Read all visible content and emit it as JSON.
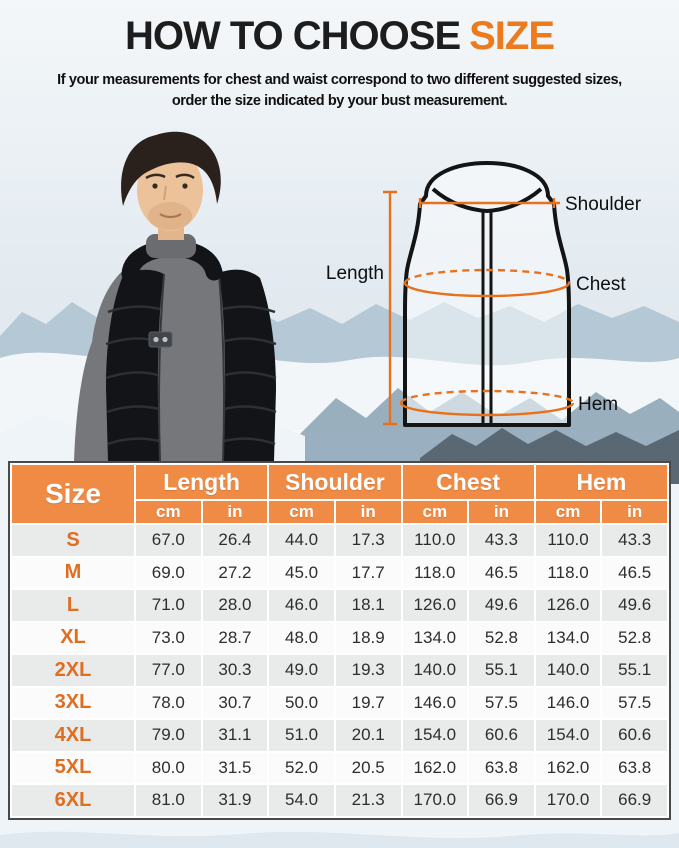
{
  "title": {
    "text": "HOW TO CHOOSE",
    "accent": "SIZE"
  },
  "subtitle": {
    "line1": "If your measurements for chest and waist correspond to two different suggested sizes,",
    "line2": "order the size indicated by your bust measurement."
  },
  "diagram": {
    "labels": {
      "length": "Length",
      "shoulder": "Shoulder",
      "chest": "Chest",
      "hem": "Hem"
    }
  },
  "colors": {
    "accent_orange": "#ED7B1E",
    "header_orange": "#F08B45",
    "size_orange": "#E06E20",
    "measure_orange": "#E8721C",
    "text_dark": "#1d1d1d"
  },
  "chart_data": {
    "type": "table",
    "size_header": "Size",
    "column_groups": [
      "Length",
      "Shoulder",
      "Chest",
      "Hem"
    ],
    "units": [
      "cm",
      "in"
    ],
    "rows": [
      {
        "size": "S",
        "values": [
          "67.0",
          "26.4",
          "44.0",
          "17.3",
          "110.0",
          "43.3",
          "110.0",
          "43.3"
        ]
      },
      {
        "size": "M",
        "values": [
          "69.0",
          "27.2",
          "45.0",
          "17.7",
          "118.0",
          "46.5",
          "118.0",
          "46.5"
        ]
      },
      {
        "size": "L",
        "values": [
          "71.0",
          "28.0",
          "46.0",
          "18.1",
          "126.0",
          "49.6",
          "126.0",
          "49.6"
        ]
      },
      {
        "size": "XL",
        "values": [
          "73.0",
          "28.7",
          "48.0",
          "18.9",
          "134.0",
          "52.8",
          "134.0",
          "52.8"
        ]
      },
      {
        "size": "2XL",
        "values": [
          "77.0",
          "30.3",
          "49.0",
          "19.3",
          "140.0",
          "55.1",
          "140.0",
          "55.1"
        ]
      },
      {
        "size": "3XL",
        "values": [
          "78.0",
          "30.7",
          "50.0",
          "19.7",
          "146.0",
          "57.5",
          "146.0",
          "57.5"
        ]
      },
      {
        "size": "4XL",
        "values": [
          "79.0",
          "31.1",
          "51.0",
          "20.1",
          "154.0",
          "60.6",
          "154.0",
          "60.6"
        ]
      },
      {
        "size": "5XL",
        "values": [
          "80.0",
          "31.5",
          "52.0",
          "20.5",
          "162.0",
          "63.8",
          "162.0",
          "63.8"
        ]
      },
      {
        "size": "6XL",
        "values": [
          "81.0",
          "31.9",
          "54.0",
          "21.3",
          "170.0",
          "66.9",
          "170.0",
          "66.9"
        ]
      }
    ]
  }
}
